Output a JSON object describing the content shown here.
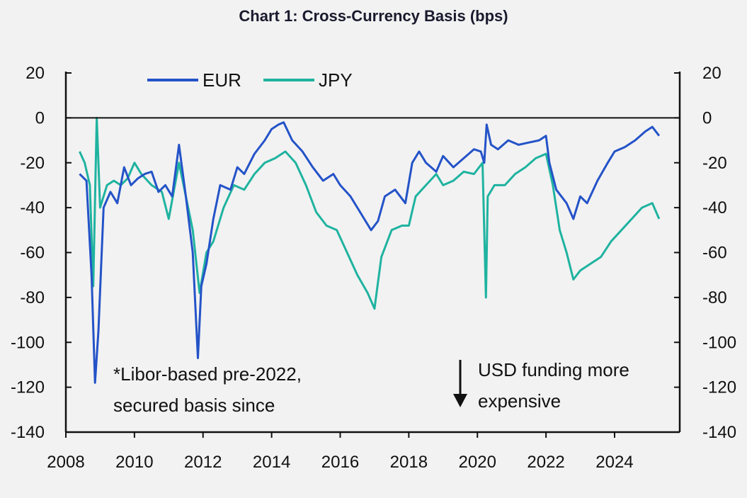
{
  "chart_data": {
    "type": "line",
    "title": "Chart 1: Cross-Currency Basis (bps)",
    "xlim": [
      2008,
      2025.9
    ],
    "ylim": [
      -140,
      20
    ],
    "x_ticks": [
      "2008",
      "2010",
      "2012",
      "2014",
      "2016",
      "2018",
      "2020",
      "2022",
      "2024"
    ],
    "y_ticks_left": [
      "20",
      "0",
      "-20",
      "-40",
      "-60",
      "-80",
      "-100",
      "-120",
      "-140"
    ],
    "y_ticks_right": [
      "20",
      "0",
      "-20",
      "-40",
      "-60",
      "-80",
      "-100",
      "-120",
      "-140"
    ],
    "legend_position": "top-left",
    "colors": {
      "EUR": "#2453c8",
      "JPY": "#1fb3a0",
      "axis": "#111111"
    },
    "series": [
      {
        "name": "EUR",
        "x": [
          2008.4,
          2008.6,
          2008.75,
          2008.85,
          2008.95,
          2009.1,
          2009.3,
          2009.5,
          2009.7,
          2009.9,
          2010.1,
          2010.3,
          2010.5,
          2010.7,
          2010.9,
          2011.1,
          2011.3,
          2011.5,
          2011.7,
          2011.85,
          2011.95,
          2012.1,
          2012.3,
          2012.5,
          2012.8,
          2013.0,
          2013.2,
          2013.5,
          2013.8,
          2014.0,
          2014.2,
          2014.35,
          2014.6,
          2014.9,
          2015.2,
          2015.5,
          2015.8,
          2016.0,
          2016.3,
          2016.5,
          2016.7,
          2016.9,
          2017.1,
          2017.3,
          2017.6,
          2017.9,
          2018.1,
          2018.3,
          2018.5,
          2018.8,
          2019.0,
          2019.3,
          2019.6,
          2019.9,
          2020.1,
          2020.2,
          2020.27,
          2020.4,
          2020.6,
          2020.9,
          2021.2,
          2021.5,
          2021.8,
          2022.0,
          2022.1,
          2022.3,
          2022.6,
          2022.8,
          2023.0,
          2023.2,
          2023.5,
          2023.8,
          2024.0,
          2024.3,
          2024.6,
          2024.9,
          2025.1,
          2025.3
        ],
        "values": [
          -25,
          -28,
          -70,
          -118,
          -95,
          -40,
          -33,
          -38,
          -22,
          -30,
          -27,
          -25,
          -24,
          -33,
          -30,
          -35,
          -12,
          -35,
          -60,
          -107,
          -75,
          -65,
          -45,
          -30,
          -32,
          -22,
          -25,
          -16,
          -10,
          -5,
          -3,
          -2,
          -10,
          -15,
          -22,
          -28,
          -25,
          -30,
          -35,
          -40,
          -45,
          -50,
          -46,
          -35,
          -32,
          -38,
          -20,
          -15,
          -20,
          -24,
          -17,
          -22,
          -18,
          -14,
          -15,
          -20,
          -3,
          -12,
          -14,
          -10,
          -12,
          -11,
          -10,
          -8,
          -20,
          -32,
          -38,
          -45,
          -35,
          -38,
          -28,
          -20,
          -15,
          -13,
          -10,
          -6,
          -4,
          -8
        ]
      },
      {
        "name": "JPY",
        "x": [
          2008.4,
          2008.55,
          2008.7,
          2008.8,
          2008.9,
          2009.0,
          2009.2,
          2009.4,
          2009.6,
          2009.8,
          2010.0,
          2010.2,
          2010.5,
          2010.8,
          2011.0,
          2011.3,
          2011.5,
          2011.7,
          2011.9,
          2012.1,
          2012.3,
          2012.6,
          2012.9,
          2013.2,
          2013.5,
          2013.8,
          2014.1,
          2014.4,
          2014.7,
          2015.0,
          2015.3,
          2015.6,
          2015.9,
          2016.2,
          2016.5,
          2016.8,
          2017.0,
          2017.2,
          2017.5,
          2017.8,
          2018.0,
          2018.2,
          2018.5,
          2018.8,
          2019.0,
          2019.3,
          2019.6,
          2019.9,
          2020.15,
          2020.25,
          2020.3,
          2020.5,
          2020.8,
          2021.1,
          2021.4,
          2021.7,
          2022.0,
          2022.2,
          2022.4,
          2022.6,
          2022.8,
          2023.0,
          2023.3,
          2023.6,
          2023.9,
          2024.2,
          2024.5,
          2024.8,
          2025.1,
          2025.3
        ],
        "values": [
          -15,
          -20,
          -30,
          -75,
          0,
          -40,
          -30,
          -28,
          -30,
          -27,
          -20,
          -25,
          -30,
          -33,
          -45,
          -20,
          -35,
          -50,
          -78,
          -60,
          -55,
          -40,
          -30,
          -32,
          -25,
          -20,
          -18,
          -15,
          -20,
          -30,
          -42,
          -48,
          -50,
          -60,
          -70,
          -78,
          -85,
          -62,
          -50,
          -48,
          -48,
          -35,
          -30,
          -25,
          -30,
          -28,
          -24,
          -25,
          -20,
          -80,
          -35,
          -30,
          -30,
          -25,
          -22,
          -18,
          -16,
          -30,
          -50,
          -60,
          -72,
          -68,
          -65,
          -62,
          -55,
          -50,
          -45,
          -40,
          -38,
          -45
        ]
      }
    ],
    "legend": [
      "EUR",
      "JPY"
    ],
    "annotations": {
      "note_line1": "*Libor-based pre-2022,",
      "note_line2": "secured basis since",
      "arrow_line1": "USD funding more",
      "arrow_line2": "expensive"
    }
  }
}
